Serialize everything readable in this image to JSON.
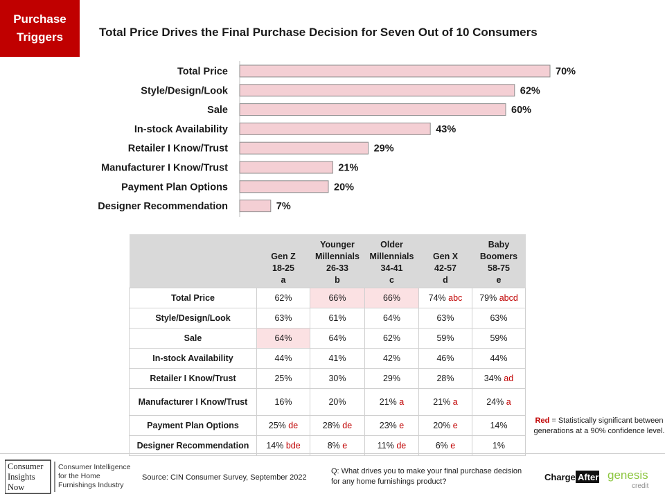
{
  "tag": {
    "line1": "Purchase",
    "line2": "Triggers"
  },
  "title": "Total Price Drives the Final Purchase Decision for Seven Out of 10 Consumers",
  "chart_data": {
    "type": "bar",
    "orientation": "horizontal",
    "categories": [
      "Total Price",
      "Style/Design/Look",
      "Sale",
      "In-stock Availability",
      "Retailer I Know/Trust",
      "Manufacturer I Know/Trust",
      "Payment Plan Options",
      "Designer Recommendation"
    ],
    "values": [
      70,
      62,
      60,
      43,
      29,
      21,
      20,
      7
    ],
    "value_labels": [
      "70%",
      "62%",
      "60%",
      "43%",
      "29%",
      "21%",
      "20%",
      "7%"
    ],
    "xlim": [
      0,
      100
    ],
    "bar_color": "#f4cfd4",
    "bar_border": "#8c8c8c",
    "grid": false,
    "legend": "none"
  },
  "table": {
    "headers": [
      {
        "lines": [
          "",
          "",
          ""
        ],
        "letter": ""
      },
      {
        "lines": [
          "",
          "Gen Z",
          "18-25"
        ],
        "letter": "a"
      },
      {
        "lines": [
          "Younger",
          "Millennials",
          "26-33"
        ],
        "letter": "b"
      },
      {
        "lines": [
          "Older",
          "Millennials",
          "34-41"
        ],
        "letter": "c"
      },
      {
        "lines": [
          "",
          "Gen X",
          "42-57"
        ],
        "letter": "d"
      },
      {
        "lines": [
          "Baby",
          "Boomers",
          "58-75"
        ],
        "letter": "e"
      }
    ],
    "rows": [
      {
        "label": "Total Price",
        "cells": [
          {
            "v": "62%",
            "sig": "",
            "hl": false
          },
          {
            "v": "66%",
            "sig": "",
            "hl": true
          },
          {
            "v": "66%",
            "sig": "",
            "hl": true
          },
          {
            "v": "74%",
            "sig": "abc",
            "hl": false
          },
          {
            "v": "79%",
            "sig": "abcd",
            "hl": false
          }
        ]
      },
      {
        "label": "Style/Design/Look",
        "cells": [
          {
            "v": "63%",
            "sig": "",
            "hl": false
          },
          {
            "v": "61%",
            "sig": "",
            "hl": false
          },
          {
            "v": "64%",
            "sig": "",
            "hl": false
          },
          {
            "v": "63%",
            "sig": "",
            "hl": false
          },
          {
            "v": "63%",
            "sig": "",
            "hl": false
          }
        ]
      },
      {
        "label": "Sale",
        "cells": [
          {
            "v": "64%",
            "sig": "",
            "hl": true
          },
          {
            "v": "64%",
            "sig": "",
            "hl": false
          },
          {
            "v": "62%",
            "sig": "",
            "hl": false
          },
          {
            "v": "59%",
            "sig": "",
            "hl": false
          },
          {
            "v": "59%",
            "sig": "",
            "hl": false
          }
        ]
      },
      {
        "label": "In-stock Availability",
        "cells": [
          {
            "v": "44%",
            "sig": "",
            "hl": false
          },
          {
            "v": "41%",
            "sig": "",
            "hl": false
          },
          {
            "v": "42%",
            "sig": "",
            "hl": false
          },
          {
            "v": "46%",
            "sig": "",
            "hl": false
          },
          {
            "v": "44%",
            "sig": "",
            "hl": false
          }
        ]
      },
      {
        "label": "Retailer I Know/Trust",
        "cells": [
          {
            "v": "25%",
            "sig": "",
            "hl": false
          },
          {
            "v": "30%",
            "sig": "",
            "hl": false
          },
          {
            "v": "29%",
            "sig": "",
            "hl": false
          },
          {
            "v": "28%",
            "sig": "",
            "hl": false
          },
          {
            "v": "34%",
            "sig": "ad",
            "hl": false
          }
        ]
      },
      {
        "label": "Manufacturer I Know/Trust",
        "tall": true,
        "cells": [
          {
            "v": "16%",
            "sig": "",
            "hl": false
          },
          {
            "v": "20%",
            "sig": "",
            "hl": false
          },
          {
            "v": "21%",
            "sig": "a",
            "hl": false
          },
          {
            "v": "21%",
            "sig": "a",
            "hl": false
          },
          {
            "v": "24%",
            "sig": "a",
            "hl": false
          }
        ]
      },
      {
        "label": "Payment Plan Options",
        "cells": [
          {
            "v": "25%",
            "sig": "de",
            "hl": false
          },
          {
            "v": "28%",
            "sig": "de",
            "hl": false
          },
          {
            "v": "23%",
            "sig": "e",
            "hl": false
          },
          {
            "v": "20%",
            "sig": "e",
            "hl": false
          },
          {
            "v": "14%",
            "sig": "",
            "hl": false
          }
        ]
      },
      {
        "label": "Designer Recommendation",
        "cells": [
          {
            "v": "14%",
            "sig": "bde",
            "hl": false
          },
          {
            "v": "8%",
            "sig": "e",
            "hl": false
          },
          {
            "v": "11%",
            "sig": "de",
            "hl": false
          },
          {
            "v": "6%",
            "sig": "e",
            "hl": false
          },
          {
            "v": "1%",
            "sig": "",
            "hl": false
          }
        ]
      }
    ],
    "highlight_color": "#fbe1e3",
    "significance_color": "#c00000"
  },
  "note": {
    "red_word": "Red",
    "text": " = Statistically significant between  generations at a 90% confidence level."
  },
  "footer": {
    "cin_logo": {
      "line1": "Consumer",
      "line2": "Insights",
      "line3": "Now",
      "tag1": "Consumer Intelligence",
      "tag2": "for the Home",
      "tag3": "Furnishings Industry"
    },
    "source": "Source: CIN Consumer Survey, September  2022",
    "question": "Q: What drives you to make your final purchase decision for any home furnishings product?",
    "chargeafter": {
      "part1": "Charge",
      "part2": "After"
    },
    "genesis": {
      "line1": "genesis",
      "line2": "credit"
    }
  }
}
